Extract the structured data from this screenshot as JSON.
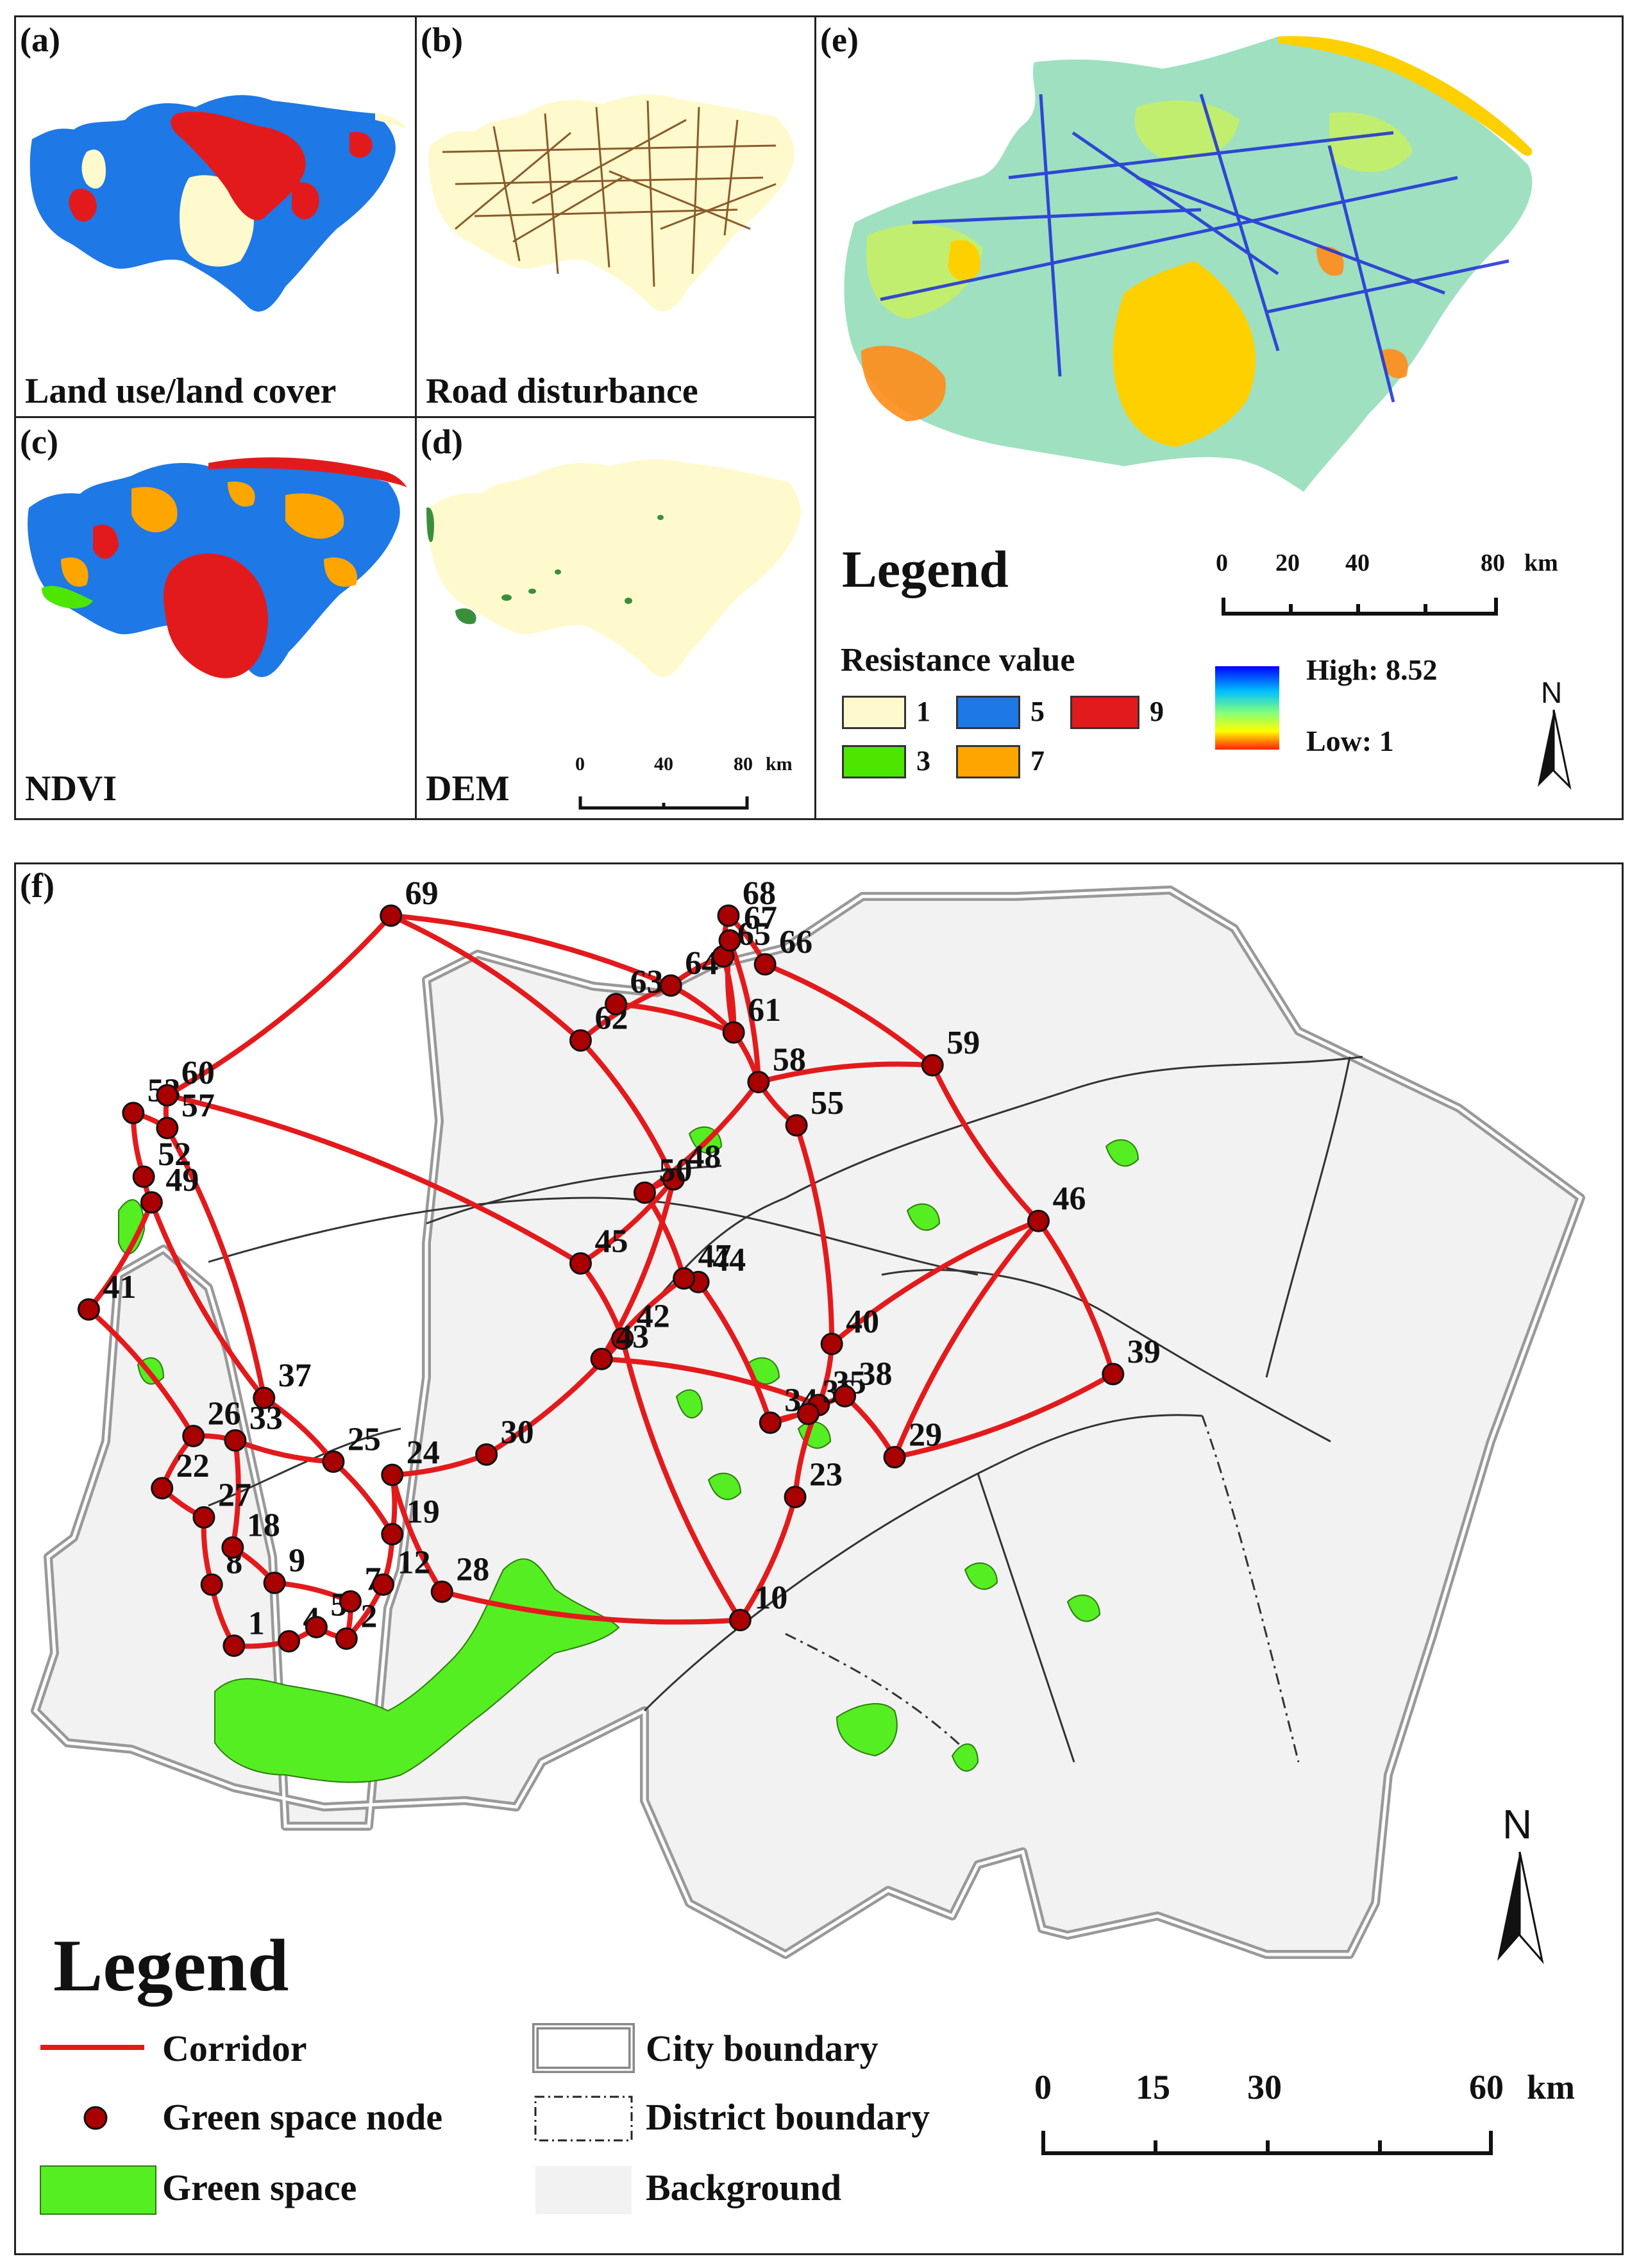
{
  "panels": {
    "a": {
      "tag": "(a)",
      "title": "Land use/land cover"
    },
    "b": {
      "tag": "(b)",
      "title": "Road disturbance"
    },
    "c": {
      "tag": "(c)",
      "title": "NDVI"
    },
    "d": {
      "tag": "(d)",
      "title": "DEM",
      "scale": {
        "ticks": [
          "0",
          "40",
          "80"
        ],
        "unit": "km"
      }
    },
    "e": {
      "tag": "(e)",
      "legend_title": "Legend",
      "scale": {
        "ticks": [
          "0",
          "20",
          "40",
          "80"
        ],
        "unit": "km"
      },
      "resistance_title": "Resistance value",
      "classes": [
        {
          "label": "1",
          "color": "#FFFACD"
        },
        {
          "label": "5",
          "color": "#1E78E6"
        },
        {
          "label": "9",
          "color": "#E31A1C"
        },
        {
          "label": "3",
          "color": "#4CE600"
        },
        {
          "label": "7",
          "color": "#FFA500"
        }
      ],
      "gradient": {
        "high": "High: 8.52",
        "low": "Low: 1"
      },
      "north": "N"
    },
    "f": {
      "tag": "(f)",
      "north": "N",
      "legend_title": "Legend",
      "legend": {
        "corridor": "Corridor",
        "node": "Green space node",
        "green": "Green space",
        "city": "City boundary",
        "district": "District boundary",
        "background": "Background"
      },
      "scale": {
        "ticks": [
          "0",
          "15",
          "30",
          "60"
        ],
        "unit": "km"
      },
      "nodes": [
        {
          "id": "1",
          "lon": 0.147,
          "lat": 0.175
        },
        {
          "id": "2",
          "lon": 0.233,
          "lat": 0.183
        },
        {
          "id": "4",
          "lon": 0.189,
          "lat": 0.18
        },
        {
          "id": "5",
          "lon": 0.21,
          "lat": 0.196
        },
        {
          "id": "7",
          "lon": 0.236,
          "lat": 0.225
        },
        {
          "id": "8",
          "lon": 0.13,
          "lat": 0.244
        },
        {
          "id": "9",
          "lon": 0.178,
          "lat": 0.246
        },
        {
          "id": "10",
          "lon": 0.534,
          "lat": 0.204
        },
        {
          "id": "12",
          "lon": 0.261,
          "lat": 0.244
        },
        {
          "id": "18",
          "lon": 0.146,
          "lat": 0.286
        },
        {
          "id": "19",
          "lon": 0.268,
          "lat": 0.301
        },
        {
          "id": "22",
          "lon": 0.092,
          "lat": 0.353
        },
        {
          "id": "23",
          "lon": 0.576,
          "lat": 0.343
        },
        {
          "id": "24",
          "lon": 0.268,
          "lat": 0.368
        },
        {
          "id": "25",
          "lon": 0.223,
          "lat": 0.383
        },
        {
          "id": "26",
          "lon": 0.116,
          "lat": 0.412
        },
        {
          "id": "27",
          "lon": 0.124,
          "lat": 0.32
        },
        {
          "id": "28",
          "lon": 0.306,
          "lat": 0.236
        },
        {
          "id": "29",
          "lon": 0.652,
          "lat": 0.388
        },
        {
          "id": "30",
          "lon": 0.34,
          "lat": 0.391
        },
        {
          "id": "33",
          "lon": 0.148,
          "lat": 0.407
        },
        {
          "id": "34",
          "lon": 0.557,
          "lat": 0.427
        },
        {
          "id": "35",
          "lon": 0.594,
          "lat": 0.447
        },
        {
          "id": "36",
          "lon": 0.586,
          "lat": 0.437
        },
        {
          "id": "37",
          "lon": 0.17,
          "lat": 0.455
        },
        {
          "id": "38",
          "lon": 0.614,
          "lat": 0.457
        },
        {
          "id": "39",
          "lon": 0.819,
          "lat": 0.482
        },
        {
          "id": "40",
          "lon": 0.604,
          "lat": 0.516
        },
        {
          "id": "41",
          "lon": 0.036,
          "lat": 0.555
        },
        {
          "id": "42",
          "lon": 0.444,
          "lat": 0.522
        },
        {
          "id": "43",
          "lon": 0.428,
          "lat": 0.499
        },
        {
          "id": "44",
          "lon": 0.502,
          "lat": 0.586
        },
        {
          "id": "45",
          "lon": 0.412,
          "lat": 0.607
        },
        {
          "id": "46",
          "lon": 0.762,
          "lat": 0.655
        },
        {
          "id": "47",
          "lon": 0.491,
          "lat": 0.59
        },
        {
          "id": "48",
          "lon": 0.483,
          "lat": 0.702
        },
        {
          "id": "49",
          "lon": 0.084,
          "lat": 0.676
        },
        {
          "id": "50",
          "lon": 0.461,
          "lat": 0.687
        },
        {
          "id": "52",
          "lon": 0.078,
          "lat": 0.705
        },
        {
          "id": "53",
          "lon": 0.07,
          "lat": 0.777
        },
        {
          "id": "55",
          "lon": 0.577,
          "lat": 0.763
        },
        {
          "id": "57",
          "lon": 0.096,
          "lat": 0.76
        },
        {
          "id": "58",
          "lon": 0.548,
          "lat": 0.812
        },
        {
          "id": "59",
          "lon": 0.681,
          "lat": 0.831
        },
        {
          "id": "60",
          "lon": 0.096,
          "lat": 0.797
        },
        {
          "id": "61",
          "lon": 0.529,
          "lat": 0.868
        },
        {
          "id": "62",
          "lon": 0.412,
          "lat": 0.859
        },
        {
          "id": "63",
          "lon": 0.439,
          "lat": 0.9
        },
        {
          "id": "64",
          "lon": 0.481,
          "lat": 0.921
        },
        {
          "id": "65",
          "lon": 0.521,
          "lat": 0.954
        },
        {
          "id": "66",
          "lon": 0.553,
          "lat": 0.945
        },
        {
          "id": "67",
          "lon": 0.526,
          "lat": 0.972
        },
        {
          "id": "68",
          "lon": 0.525,
          "lat": 1.0
        },
        {
          "id": "69",
          "lon": 0.267,
          "lat": 1.0
        }
      ]
    }
  }
}
